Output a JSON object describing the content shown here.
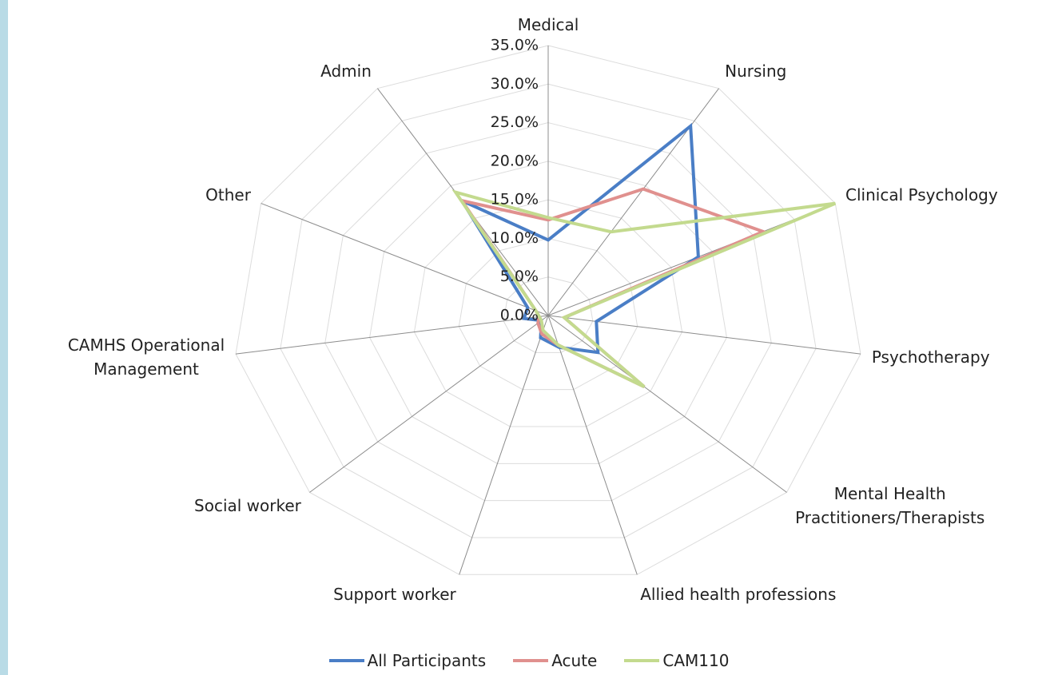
{
  "chart_data": {
    "type": "radar",
    "categories": [
      "Medical",
      "Nursing",
      "Clinical Psychology",
      "Psychotherapy",
      "Mental Health\nPractitioners/Therapists",
      "Allied health professions",
      "Support worker",
      "Social worker",
      "CAMHS Operational\nManagement",
      "Other",
      "Admin"
    ],
    "series": [
      {
        "name": "All Participants",
        "color": "#4a7ec6",
        "values": [
          9.8,
          29.2,
          18.3,
          5.4,
          7.3,
          4.3,
          3.0,
          1.0,
          2.7,
          2.5,
          17.7
        ]
      },
      {
        "name": "Acute",
        "color": "#e0908e",
        "values": [
          12.4,
          19.5,
          26.2,
          1.8,
          14.1,
          4.0,
          2.5,
          1.5,
          1.0,
          1.5,
          17.7
        ]
      },
      {
        "name": "CAM110",
        "color": "#c3da8e",
        "values": [
          12.7,
          12.9,
          35.0,
          1.8,
          14.1,
          4.0,
          2.0,
          1.0,
          1.0,
          1.5,
          19.0
        ]
      }
    ],
    "ylim": [
      0,
      35
    ],
    "yticks": [
      {
        "value": 0,
        "label": "0.0%"
      },
      {
        "value": 5,
        "label": "5.0%"
      },
      {
        "value": 10,
        "label": "10.0%"
      },
      {
        "value": 15,
        "label": "15.0%"
      },
      {
        "value": 20,
        "label": "20.0%"
      },
      {
        "value": 25,
        "label": "25.0%"
      },
      {
        "value": 30,
        "label": "30.0%"
      },
      {
        "value": 35,
        "label": "35.0%"
      }
    ],
    "grid": true
  }
}
